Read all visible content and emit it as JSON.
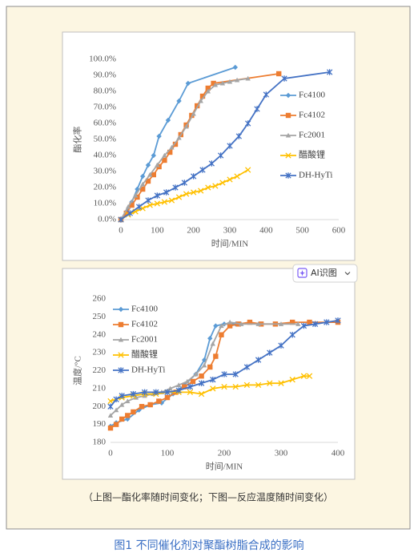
{
  "chart_data": [
    {
      "type": "line",
      "ylabel": "酯化率",
      "xlabel": "时间/MIN",
      "xlim": [
        0,
        600
      ],
      "xticks": [
        0,
        100,
        200,
        300,
        400,
        500,
        600
      ],
      "ylim": [
        0,
        100
      ],
      "yticks": [
        {
          "value": 0,
          "label": "0.0%"
        },
        {
          "value": 10,
          "label": "10.0%"
        },
        {
          "value": 20,
          "label": "20.0%"
        },
        {
          "value": 30,
          "label": "30.0%"
        },
        {
          "value": 40,
          "label": "40.0%"
        },
        {
          "value": 50,
          "label": "50.0%"
        },
        {
          "value": 60,
          "label": "60.0%"
        },
        {
          "value": 70,
          "label": "70.0%"
        },
        {
          "value": 80,
          "label": "80.0%"
        },
        {
          "value": 90,
          "label": "90.0%"
        },
        {
          "value": 100,
          "label": "100.0%"
        }
      ],
      "legend": "right",
      "series": [
        {
          "name": "Fc4100",
          "color": "#5b9bd5",
          "marker": "diamond",
          "x": [
            0,
            15,
            30,
            45,
            60,
            75,
            90,
            105,
            130,
            160,
            185,
            315
          ],
          "values": [
            0,
            5,
            11,
            19,
            27,
            34,
            40,
            52,
            62,
            74,
            85,
            95
          ]
        },
        {
          "name": "Fc4102",
          "color": "#ed7d31",
          "marker": "square",
          "x": [
            0,
            15,
            30,
            45,
            60,
            75,
            90,
            105,
            120,
            135,
            150,
            165,
            180,
            195,
            210,
            225,
            240,
            255,
            435
          ],
          "values": [
            0,
            4,
            9,
            14,
            19,
            24,
            28,
            33,
            37,
            42,
            47,
            53,
            59,
            65,
            71,
            77,
            82,
            85,
            91
          ]
        },
        {
          "name": "Fc2001",
          "color": "#a5a5a5",
          "marker": "triangle",
          "x": [
            0,
            20,
            40,
            60,
            80,
            100,
            120,
            140,
            160,
            180,
            200,
            220,
            240,
            260,
            280,
            300,
            320,
            350
          ],
          "values": [
            0,
            8,
            15,
            22,
            28,
            34,
            40,
            45,
            51,
            58,
            66,
            74,
            80,
            84,
            85,
            86,
            87,
            88
          ]
        },
        {
          "name": "醋酸锂",
          "color": "#ffc000",
          "marker": "x",
          "x": [
            0,
            20,
            40,
            60,
            80,
            100,
            120,
            140,
            160,
            180,
            200,
            220,
            240,
            260,
            280,
            300,
            320,
            350
          ],
          "values": [
            0,
            3,
            5,
            7,
            9,
            10,
            11,
            12,
            14,
            16,
            17,
            18,
            20,
            21,
            23,
            25,
            27,
            31
          ]
        },
        {
          "name": "DH-HyTi",
          "color": "#4472c4",
          "marker": "star",
          "x": [
            0,
            25,
            50,
            75,
            100,
            125,
            150,
            175,
            200,
            225,
            250,
            275,
            300,
            325,
            350,
            375,
            400,
            450,
            575
          ],
          "values": [
            0,
            4,
            8,
            12,
            15,
            17,
            20,
            23,
            27,
            31,
            35,
            40,
            46,
            52,
            60,
            69,
            78,
            88,
            92
          ]
        }
      ]
    },
    {
      "type": "line",
      "ylabel": "温度/°C",
      "xlabel": "时间/MIN",
      "xlim": [
        0,
        400
      ],
      "xticks": [
        0,
        100,
        200,
        300,
        400
      ],
      "ylim": [
        180,
        260
      ],
      "yticks": [
        180,
        190,
        200,
        210,
        220,
        230,
        240,
        250,
        260
      ],
      "legend": "upper left",
      "series": [
        {
          "name": "Fc4100",
          "color": "#5b9bd5",
          "marker": "diamond",
          "x": [
            0,
            10,
            30,
            50,
            70,
            90,
            110,
            130,
            150,
            165,
            175,
            185,
            200,
            220
          ],
          "values": [
            189,
            191,
            193,
            198,
            201,
            202,
            207,
            212,
            218,
            226,
            238,
            245,
            246,
            246
          ]
        },
        {
          "name": "Fc4102",
          "color": "#ed7d31",
          "marker": "square",
          "x": [
            0,
            10,
            20,
            30,
            40,
            55,
            70,
            85,
            100,
            115,
            130,
            145,
            160,
            175,
            185,
            195,
            210,
            225,
            245,
            265,
            290,
            320,
            350,
            400
          ],
          "values": [
            188,
            190,
            193,
            195,
            197,
            200,
            201,
            203,
            205,
            208,
            211,
            214,
            217,
            222,
            228,
            240,
            245,
            246,
            247,
            246,
            246,
            247,
            247,
            247
          ]
        },
        {
          "name": "Fc2001",
          "color": "#a5a5a5",
          "marker": "triangle",
          "x": [
            0,
            10,
            20,
            30,
            45,
            60,
            75,
            90,
            105,
            120,
            135,
            150,
            165,
            180,
            195,
            210,
            230,
            260,
            300,
            330
          ],
          "values": [
            195,
            198,
            201,
            203,
            205,
            206,
            207,
            208,
            210,
            212,
            214,
            218,
            223,
            235,
            245,
            247,
            246,
            246,
            246,
            246
          ]
        },
        {
          "name": "醋酸锂",
          "color": "#ffc000",
          "marker": "x",
          "x": [
            0,
            20,
            40,
            60,
            80,
            100,
            120,
            140,
            160,
            180,
            200,
            220,
            240,
            260,
            280,
            300,
            320,
            340,
            350
          ],
          "values": [
            203,
            205,
            206,
            207,
            207,
            208,
            208,
            208,
            207,
            210,
            211,
            211,
            212,
            212,
            213,
            213,
            215,
            217,
            217
          ]
        },
        {
          "name": "DH-HyTi",
          "color": "#4472c4",
          "marker": "star",
          "x": [
            0,
            10,
            20,
            40,
            60,
            80,
            100,
            120,
            140,
            160,
            180,
            200,
            220,
            240,
            260,
            280,
            300,
            320,
            340,
            360,
            380,
            400
          ],
          "values": [
            200,
            204,
            206,
            207,
            208,
            208,
            208,
            209,
            211,
            213,
            215,
            218,
            218,
            222,
            226,
            230,
            234,
            240,
            245,
            246,
            247,
            248
          ]
        }
      ]
    }
  ],
  "button": {
    "label": "AI识图"
  },
  "note": "（上图—酯化率随时间变化；下图—反应温度随时间变化）",
  "caption": "图1 不同催化剂对聚酯树脂合成的影响"
}
